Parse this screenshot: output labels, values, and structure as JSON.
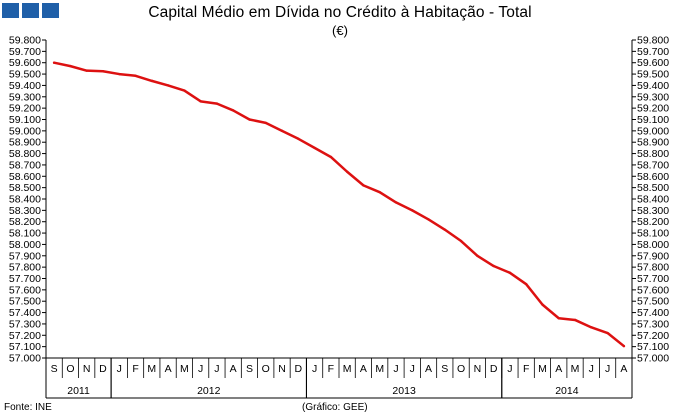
{
  "header": {
    "title": "Capital Médio em Dívida no Crédito à Habitação - Total",
    "subtitle": "(€)"
  },
  "footer": {
    "source": "Fonte: INE",
    "credit": "(Gráfico: GEE)"
  },
  "colors": {
    "line": "#dd1111",
    "logo": "#1f5fa8"
  },
  "chart_data": {
    "type": "line",
    "title": "Capital Médio em Dívida no Crédito à Habitação - Total",
    "ylabel": "(€)",
    "ylim": [
      57000,
      59800
    ],
    "ytick_step": 100,
    "yticks": [
      "57.000",
      "57.100",
      "57.200",
      "57.300",
      "57.400",
      "57.500",
      "57.600",
      "57.700",
      "57.800",
      "57.900",
      "58.000",
      "58.100",
      "58.200",
      "58.300",
      "58.400",
      "58.500",
      "58.600",
      "58.700",
      "58.800",
      "58.900",
      "59.000",
      "59.100",
      "59.200",
      "59.300",
      "59.400",
      "59.500",
      "59.600",
      "59.700",
      "59.800"
    ],
    "grid": false,
    "month_labels": [
      "S",
      "O",
      "N",
      "D",
      "J",
      "F",
      "M",
      "A",
      "M",
      "J",
      "J",
      "A",
      "S",
      "O",
      "N",
      "D",
      "J",
      "F",
      "M",
      "A",
      "M",
      "J",
      "J",
      "A",
      "S",
      "O",
      "N",
      "D",
      "J",
      "F",
      "M",
      "A",
      "M",
      "J",
      "J",
      "A"
    ],
    "years": [
      {
        "label": "2011",
        "from": 0,
        "to": 3
      },
      {
        "label": "2012",
        "from": 4,
        "to": 15
      },
      {
        "label": "2013",
        "from": 16,
        "to": 27
      },
      {
        "label": "2014",
        "from": 28,
        "to": 35
      }
    ],
    "series": [
      {
        "values": [
          59600,
          59570,
          59530,
          59525,
          59500,
          59485,
          59440,
          59400,
          59355,
          59260,
          59240,
          59180,
          59100,
          59070,
          59000,
          58930,
          58850,
          58770,
          58640,
          58520,
          58460,
          58370,
          58300,
          58220,
          58130,
          58030,
          57900,
          57810,
          57750,
          57650,
          57470,
          57350,
          57335,
          57270,
          57220,
          57105
        ]
      }
    ]
  }
}
